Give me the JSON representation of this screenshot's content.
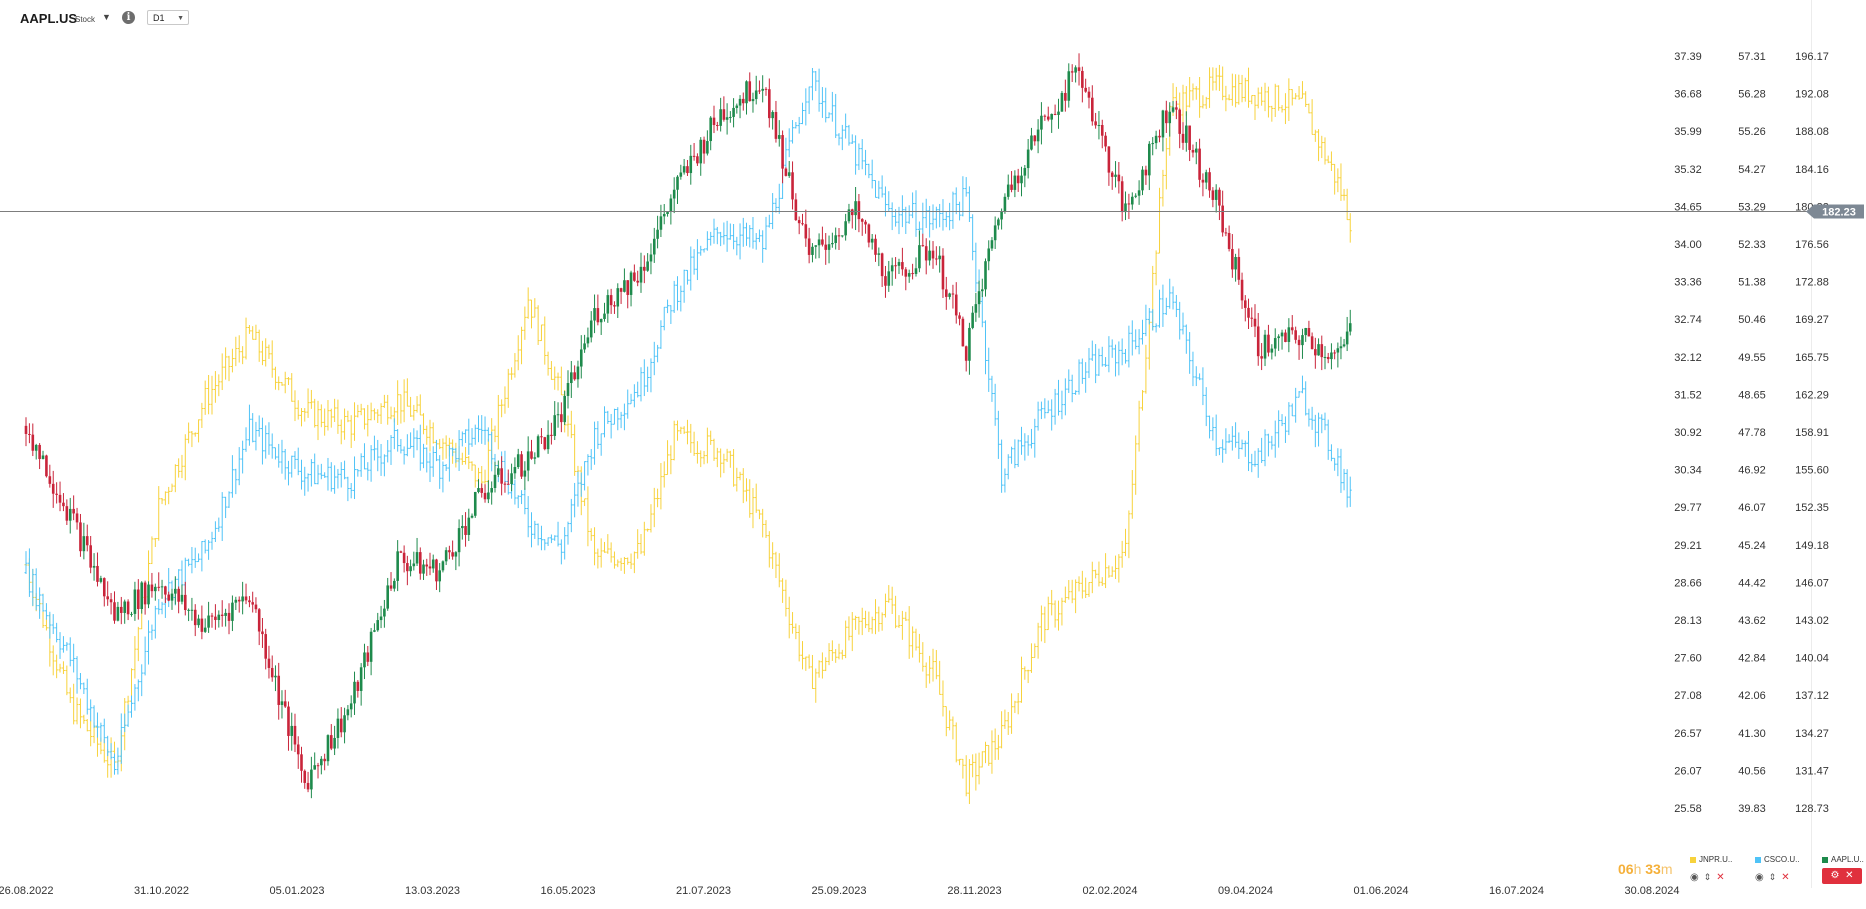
{
  "header": {
    "symbol": "AAPL.US",
    "asset_type": "Stock",
    "timeframe": "D1"
  },
  "countdown": {
    "hours": "06",
    "h_unit": "h",
    "minutes": "33",
    "m_unit": "m"
  },
  "colors": {
    "jnpr": "#f7d23c",
    "csco": "#4fc3f7",
    "aapl_up": "#1e8a4c",
    "aapl_down": "#c9243a",
    "price_line": "#7d7d7d",
    "price_badge": "#7d8894"
  },
  "legend": [
    {
      "label": "JNPR.U..",
      "color": "#f7d23c"
    },
    {
      "label": "CSCO.U..",
      "color": "#4fc3f7"
    },
    {
      "label": "AAPL.U..",
      "color": "#1e8a4c"
    }
  ],
  "icons": {
    "visibility": "eye-icon",
    "reorder": "up-down-arrows-icon",
    "remove": "close-icon",
    "settings": "sliders-icon"
  },
  "chart_data": {
    "type": "line",
    "title": "",
    "x_tick_labels": [
      "26.08.2022",
      "31.10.2022",
      "05.01.2023",
      "13.03.2023",
      "16.05.2023",
      "21.07.2023",
      "25.09.2023",
      "28.11.2023",
      "02.02.2024",
      "09.04.2024",
      "01.06.2024",
      "16.07.2024",
      "30.08.2024"
    ],
    "axes": {
      "JNPR": [
        "37.39",
        "36.68",
        "35.99",
        "35.32",
        "34.65",
        "34.00",
        "33.36",
        "32.74",
        "32.12",
        "31.52",
        "30.92",
        "30.34",
        "29.77",
        "29.21",
        "28.66",
        "28.13",
        "27.60",
        "27.08",
        "26.57",
        "26.07",
        "25.58"
      ],
      "CSCO": [
        "57.31",
        "56.28",
        "55.26",
        "54.27",
        "53.29",
        "52.33",
        "51.38",
        "50.46",
        "49.55",
        "48.65",
        "47.78",
        "46.92",
        "46.07",
        "45.24",
        "44.42",
        "43.62",
        "42.84",
        "42.06",
        "41.30",
        "40.56",
        "39.83"
      ],
      "AAPL": [
        "196.17",
        "192.08",
        "188.08",
        "184.16",
        "180.32",
        "176.56",
        "172.88",
        "169.27",
        "165.75",
        "162.29",
        "158.91",
        "155.60",
        "152.35",
        "149.18",
        "146.07",
        "143.02",
        "140.04",
        "137.12",
        "134.27",
        "131.47",
        "128.73"
      ]
    },
    "current_price": {
      "label": "182.23",
      "value": 182.23
    },
    "series": [
      {
        "name": "JNPR.US",
        "style": "ohlc-bars",
        "color": "#f7d23c",
        "x": [
          "2022-08-26",
          "2022-09-15",
          "2022-10-05",
          "2022-10-25",
          "2022-11-15",
          "2022-12-05",
          "2022-12-30",
          "2023-01-20",
          "2023-02-10",
          "2023-03-01",
          "2023-03-20",
          "2023-04-10",
          "2023-04-25",
          "2023-05-10",
          "2023-05-31",
          "2023-06-15",
          "2023-07-06",
          "2023-07-25",
          "2023-08-15",
          "2023-09-05",
          "2023-09-20",
          "2023-10-10",
          "2023-10-25",
          "2023-11-10",
          "2023-11-28",
          "2023-12-15",
          "2024-01-05",
          "2024-01-25",
          "2024-02-15",
          "2024-03-05",
          "2024-03-25",
          "2024-04-10",
          "2024-04-17"
        ],
        "values": [
          29.4,
          27.2,
          26.2,
          30.3,
          32.0,
          33.0,
          31.8,
          31.6,
          32.0,
          31.4,
          30.7,
          33.6,
          32.0,
          29.5,
          29.6,
          31.4,
          31.2,
          30.0,
          27.6,
          28.4,
          28.8,
          27.7,
          26.0,
          26.7,
          28.5,
          29.0,
          29.6,
          36.6,
          36.9,
          36.8,
          36.6,
          35.4,
          34.7
        ]
      },
      {
        "name": "CSCO.US",
        "style": "ohlc-bars",
        "color": "#4fc3f7",
        "x": [
          "2022-08-26",
          "2022-09-15",
          "2022-10-05",
          "2022-10-25",
          "2022-11-15",
          "2022-12-05",
          "2022-12-30",
          "2023-01-20",
          "2023-02-10",
          "2023-03-01",
          "2023-03-20",
          "2023-04-10",
          "2023-04-25",
          "2023-05-10",
          "2023-05-31",
          "2023-06-15",
          "2023-07-06",
          "2023-07-25",
          "2023-08-15",
          "2023-09-05",
          "2023-09-20",
          "2023-10-10",
          "2023-10-25",
          "2023-11-10",
          "2023-11-28",
          "2023-12-15",
          "2024-01-05",
          "2024-01-25",
          "2024-02-15",
          "2024-03-05",
          "2024-03-25",
          "2024-04-10",
          "2024-04-17"
        ],
        "values": [
          45.3,
          43.3,
          40.8,
          44.7,
          45.8,
          48.6,
          47.6,
          47.5,
          48.4,
          47.8,
          48.7,
          46.5,
          45.9,
          48.5,
          49.7,
          51.8,
          53.3,
          52.9,
          56.8,
          55.0,
          53.7,
          53.5,
          54.0,
          47.6,
          48.9,
          49.9,
          50.5,
          51.7,
          48.4,
          48.0,
          49.4,
          47.9,
          46.7
        ]
      },
      {
        "name": "AAPL.US",
        "style": "candles",
        "color_up": "#1e8a4c",
        "color_down": "#c9243a",
        "x": [
          "2022-08-26",
          "2022-09-15",
          "2022-10-05",
          "2022-10-25",
          "2022-11-15",
          "2022-12-05",
          "2022-12-30",
          "2023-01-20",
          "2023-02-10",
          "2023-03-01",
          "2023-03-20",
          "2023-04-10",
          "2023-04-25",
          "2023-05-10",
          "2023-05-31",
          "2023-06-15",
          "2023-07-06",
          "2023-07-25",
          "2023-08-15",
          "2023-09-05",
          "2023-09-20",
          "2023-10-10",
          "2023-10-25",
          "2023-11-10",
          "2023-11-28",
          "2023-12-15",
          "2024-01-05",
          "2024-01-25",
          "2024-02-15",
          "2024-03-05",
          "2024-03-25",
          "2024-04-10",
          "2024-04-17"
        ],
        "values": [
          163,
          155,
          146,
          149,
          145,
          148,
          131,
          138,
          151,
          150,
          157,
          160,
          164,
          173,
          177,
          184,
          191,
          194,
          178,
          182,
          176,
          179,
          170,
          183,
          190,
          195,
          182,
          192,
          183,
          170,
          171,
          169,
          172
        ]
      }
    ]
  }
}
